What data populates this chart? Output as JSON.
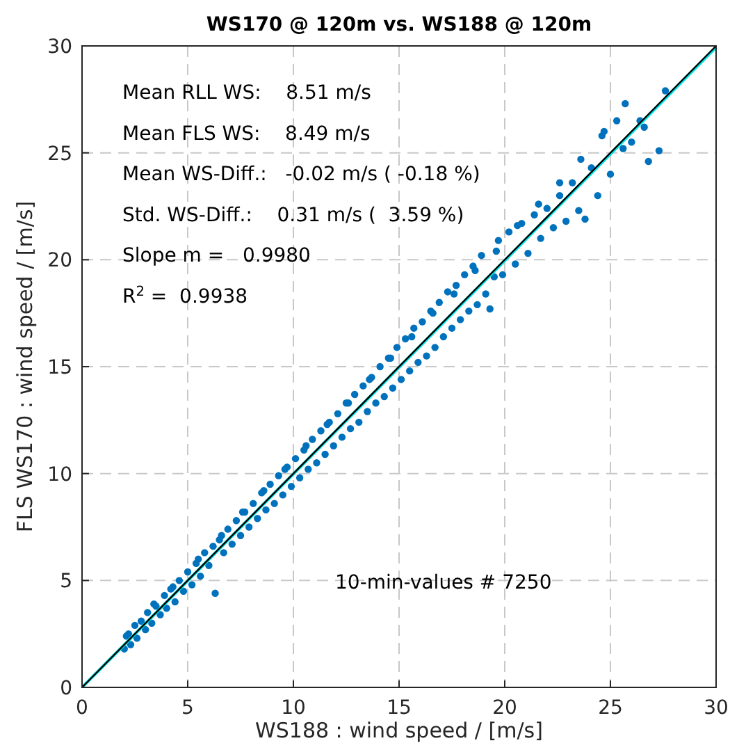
{
  "chart_data": {
    "type": "scatter",
    "title": "WS170 @ 120m vs. WS188 @ 120m",
    "xlabel": "WS188 : wind speed / [m/s]",
    "ylabel": "FLS WS170 : wind speed / [m/s]",
    "xlim": [
      0,
      30
    ],
    "ylim": [
      0,
      30
    ],
    "xticks": [
      0,
      5,
      10,
      15,
      20,
      25,
      30
    ],
    "yticks": [
      0,
      5,
      10,
      15,
      20,
      25,
      30
    ],
    "grid": true,
    "marker": "circle",
    "annotations": [
      "Mean RLL WS:    8.51 m/s",
      "Mean FLS WS:    8.49 m/s",
      "Mean WS-Diff.:   -0.02 m/s ( -0.18 %)",
      "Std. WS-Diff.:    0.31 m/s (  3.59 %)",
      "Slope m =   0.9980",
      "R$^{2}$ =  0.9938",
      "10-min-values # 7250"
    ],
    "series": [
      {
        "color": "#0072bd",
        "x": [
          2.0,
          2.1,
          2.3,
          2.5,
          2.6,
          2.8,
          3.0,
          3.1,
          3.3,
          3.5,
          3.7,
          3.9,
          4.0,
          4.2,
          4.4,
          4.6,
          4.8,
          5.0,
          5.2,
          5.4,
          5.6,
          5.8,
          6.0,
          6.2,
          6.3,
          6.5,
          6.7,
          6.9,
          7.1,
          7.3,
          7.5,
          7.7,
          7.9,
          8.1,
          8.3,
          8.5,
          8.7,
          8.9,
          9.1,
          9.3,
          9.5,
          9.7,
          9.9,
          10.1,
          10.3,
          10.5,
          10.7,
          10.9,
          11.1,
          11.3,
          11.5,
          11.7,
          11.9,
          12.1,
          12.3,
          12.5,
          12.7,
          12.9,
          13.1,
          13.3,
          13.5,
          13.7,
          13.9,
          14.1,
          14.3,
          14.5,
          14.7,
          14.9,
          15.1,
          15.3,
          15.5,
          15.7,
          15.9,
          16.1,
          16.3,
          16.5,
          16.7,
          16.9,
          17.1,
          17.3,
          17.5,
          17.7,
          17.9,
          18.1,
          18.3,
          18.5,
          18.7,
          18.9,
          19.1,
          19.3,
          19.5,
          19.7,
          19.9,
          20.2,
          20.5,
          20.8,
          21.1,
          21.4,
          21.7,
          22.0,
          22.3,
          22.6,
          22.9,
          23.2,
          23.5,
          23.8,
          24.1,
          24.4,
          24.7,
          25.0,
          25.3,
          25.7,
          26.0,
          26.4,
          26.8,
          27.3,
          27.6,
          2.2,
          3.4,
          4.3,
          5.5,
          6.6,
          7.6,
          8.6,
          9.6,
          10.6,
          11.6,
          12.6,
          13.6,
          14.6,
          15.6,
          16.6,
          17.6,
          18.6,
          19.6,
          20.6,
          21.6,
          22.6,
          23.6,
          24.6,
          25.6,
          26.6
        ],
        "values": [
          1.8,
          2.4,
          2.0,
          2.9,
          2.3,
          3.1,
          2.7,
          3.5,
          3.0,
          3.8,
          3.4,
          4.3,
          3.7,
          4.6,
          4.0,
          5.0,
          4.5,
          5.4,
          4.8,
          5.8,
          5.2,
          6.3,
          5.7,
          6.6,
          4.4,
          6.9,
          6.3,
          7.4,
          6.7,
          7.8,
          7.1,
          8.2,
          7.5,
          8.6,
          7.9,
          9.1,
          8.3,
          9.5,
          8.6,
          9.9,
          9.0,
          10.3,
          9.4,
          10.7,
          9.8,
          11.1,
          10.2,
          11.6,
          10.5,
          12.0,
          10.9,
          12.4,
          11.3,
          12.8,
          11.7,
          13.3,
          12.1,
          13.7,
          12.4,
          14.1,
          12.9,
          14.5,
          13.3,
          15.0,
          13.6,
          15.4,
          14.0,
          15.9,
          14.4,
          16.3,
          14.8,
          16.8,
          15.2,
          17.1,
          15.5,
          17.6,
          15.9,
          18.0,
          16.4,
          18.5,
          16.8,
          18.8,
          17.2,
          19.3,
          17.6,
          19.7,
          17.9,
          20.2,
          18.4,
          17.7,
          19.2,
          20.9,
          19.3,
          21.3,
          19.8,
          21.7,
          20.3,
          22.1,
          21.0,
          22.4,
          21.5,
          23.0,
          21.8,
          23.6,
          22.3,
          21.9,
          24.3,
          23.0,
          26.0,
          24.0,
          26.5,
          27.3,
          25.5,
          26.5,
          24.6,
          25.1,
          27.9,
          2.5,
          3.9,
          4.7,
          6.0,
          7.1,
          8.2,
          9.2,
          10.2,
          11.3,
          12.3,
          13.3,
          14.4,
          15.4,
          16.4,
          17.5,
          18.4,
          19.5,
          20.4,
          21.6,
          22.6,
          23.6,
          24.7,
          25.8,
          25.2,
          26.2
        ]
      },
      {
        "type": "line",
        "marker": "none",
        "color": "#00e5e5",
        "x": [
          0,
          30
        ],
        "values": [
          0.0,
          29.94
        ]
      },
      {
        "type": "line",
        "marker": "none",
        "color": "#000000",
        "x": [
          0,
          30
        ],
        "values": [
          0,
          30
        ]
      }
    ]
  }
}
